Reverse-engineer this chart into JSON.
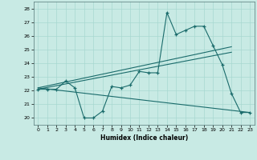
{
  "xlabel": "Humidex (Indice chaleur)",
  "xlim": [
    -0.5,
    23.5
  ],
  "ylim": [
    19.5,
    28.5
  ],
  "yticks": [
    20,
    21,
    22,
    23,
    24,
    25,
    26,
    27,
    28
  ],
  "xticks": [
    0,
    1,
    2,
    3,
    4,
    5,
    6,
    7,
    8,
    9,
    10,
    11,
    12,
    13,
    14,
    15,
    16,
    17,
    18,
    19,
    20,
    21,
    22,
    23
  ],
  "background_color": "#c8eae4",
  "grid_color": "#a8d8d0",
  "line_color": "#1a6b6b",
  "series": {
    "main_line": {
      "x": [
        0,
        1,
        2,
        3,
        4,
        5,
        6,
        7,
        8,
        9,
        10,
        11,
        12,
        13,
        14,
        15,
        16,
        17,
        18,
        19,
        20,
        21,
        22,
        23
      ],
      "y": [
        22.1,
        22.1,
        22.1,
        22.7,
        22.2,
        20.0,
        20.0,
        20.5,
        22.3,
        22.2,
        22.4,
        23.4,
        23.3,
        23.3,
        27.7,
        26.1,
        26.4,
        26.7,
        26.7,
        25.3,
        23.9,
        21.8,
        20.4,
        20.4
      ]
    },
    "trend1": {
      "x": [
        0,
        21
      ],
      "y": [
        22.2,
        25.2
      ]
    },
    "trend2": {
      "x": [
        0,
        21
      ],
      "y": [
        22.1,
        24.8
      ]
    },
    "trend3": {
      "x": [
        0,
        23
      ],
      "y": [
        22.2,
        20.4
      ]
    }
  }
}
